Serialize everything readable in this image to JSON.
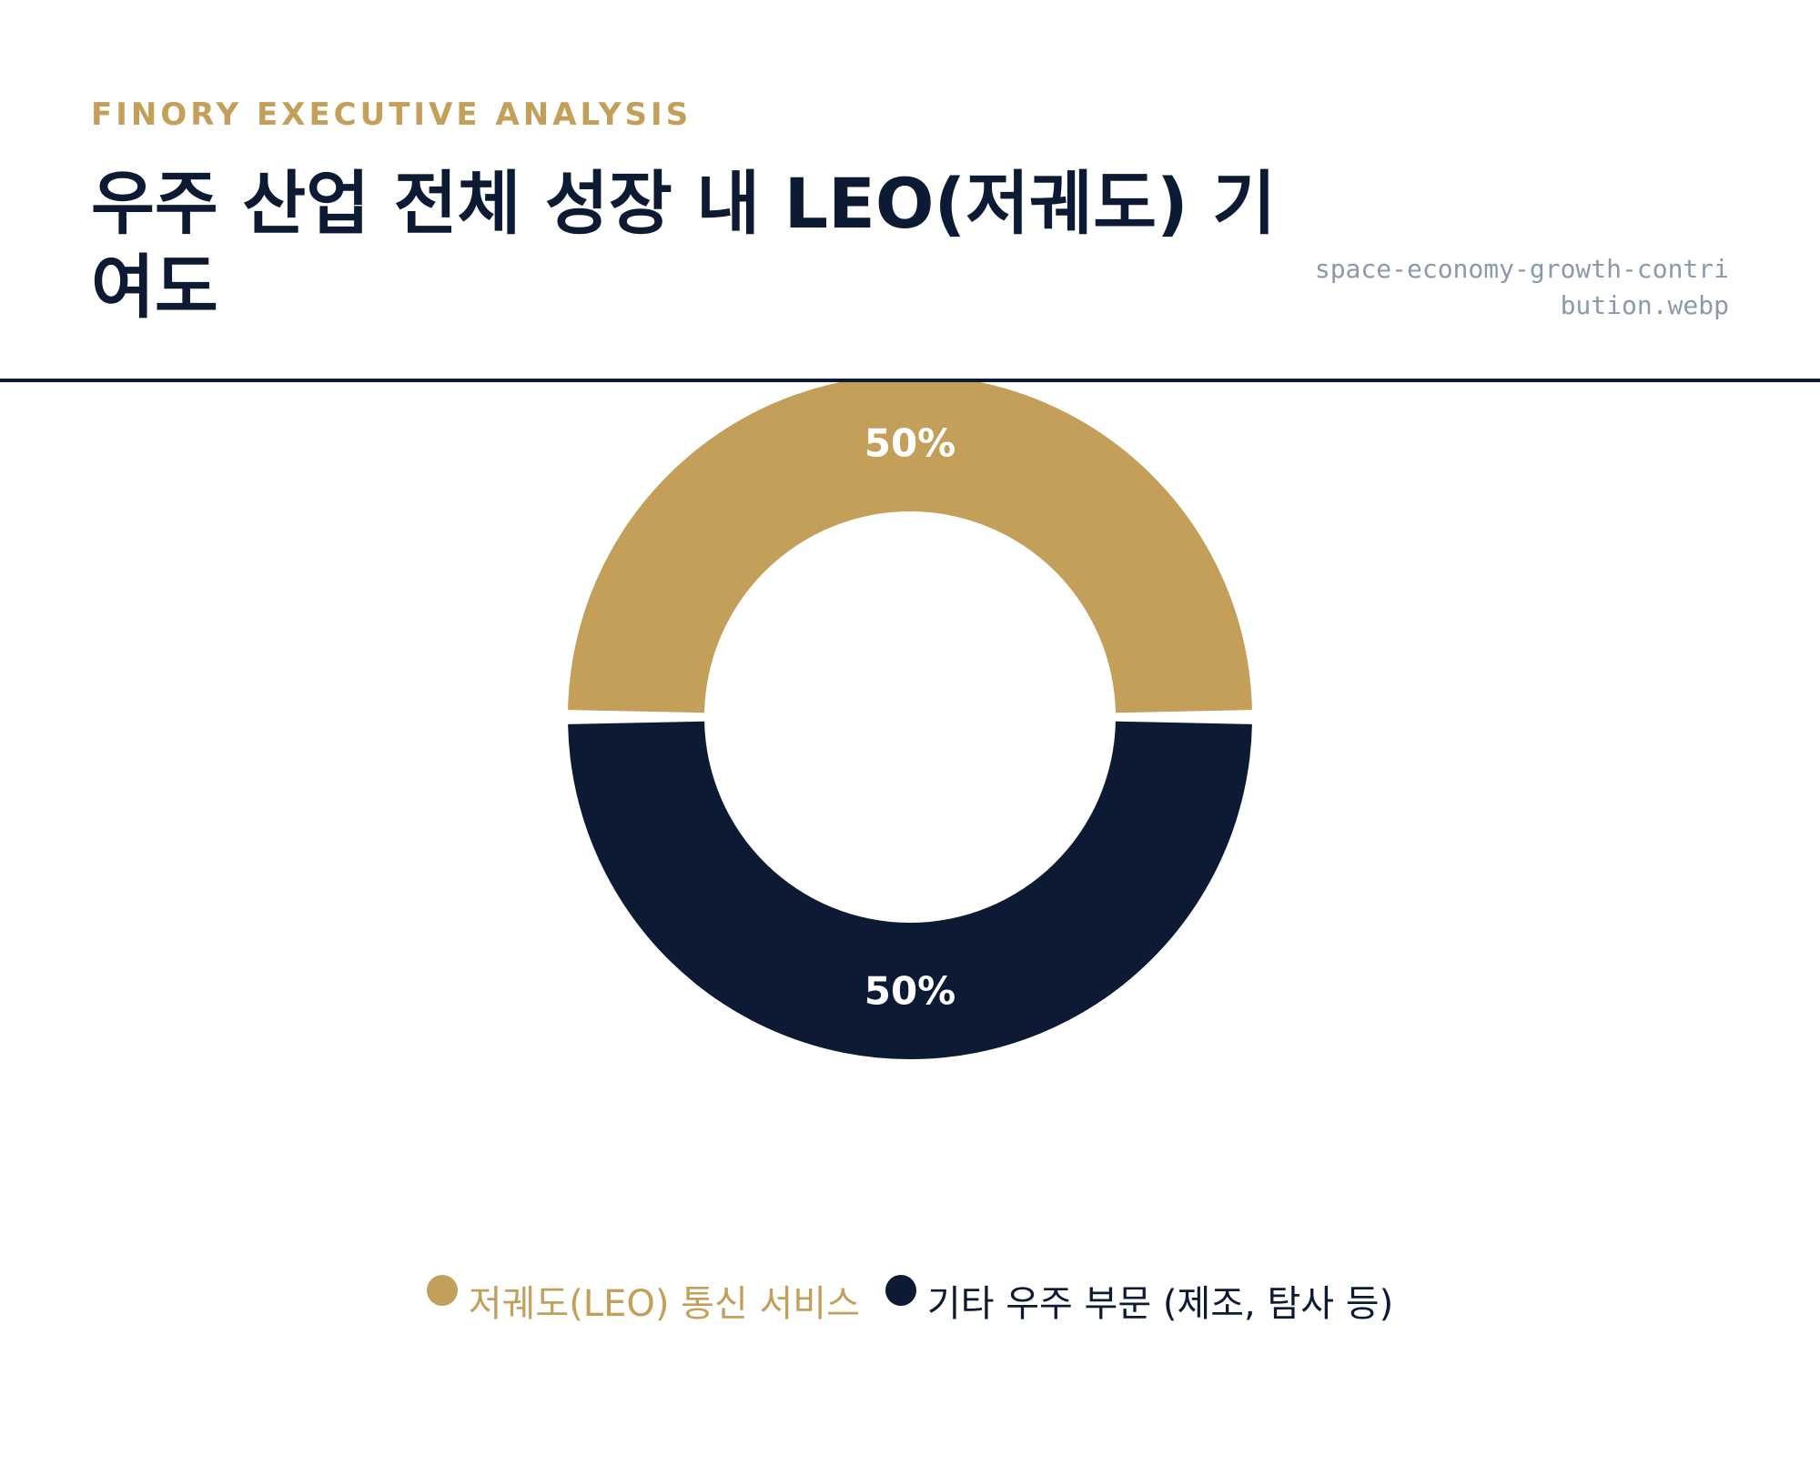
{
  "header": {
    "eyebrow": "FINORY EXECUTIVE ANALYSIS",
    "title": "우주 산업 전체 성장 내 LEO(저궤도) 기여도",
    "filename": "space-economy-growth-contribution.webp"
  },
  "colors": {
    "accent": "#c49f5a",
    "navy": "#0c1a33",
    "filename": "#8b99ad"
  },
  "chart_data": {
    "type": "pie",
    "donut": true,
    "categories": [
      "저궤도(LEO) 통신 서비스",
      "기타 우주 부문 (제조, 탐사 등)"
    ],
    "values": [
      50,
      50
    ],
    "value_labels": [
      "50%",
      "50%"
    ],
    "colors": [
      "#c49f5a",
      "#0c1a33"
    ],
    "legend_text_colors": [
      "#c49f5a",
      "#0c1a33"
    ],
    "legend_position": "bottom"
  }
}
